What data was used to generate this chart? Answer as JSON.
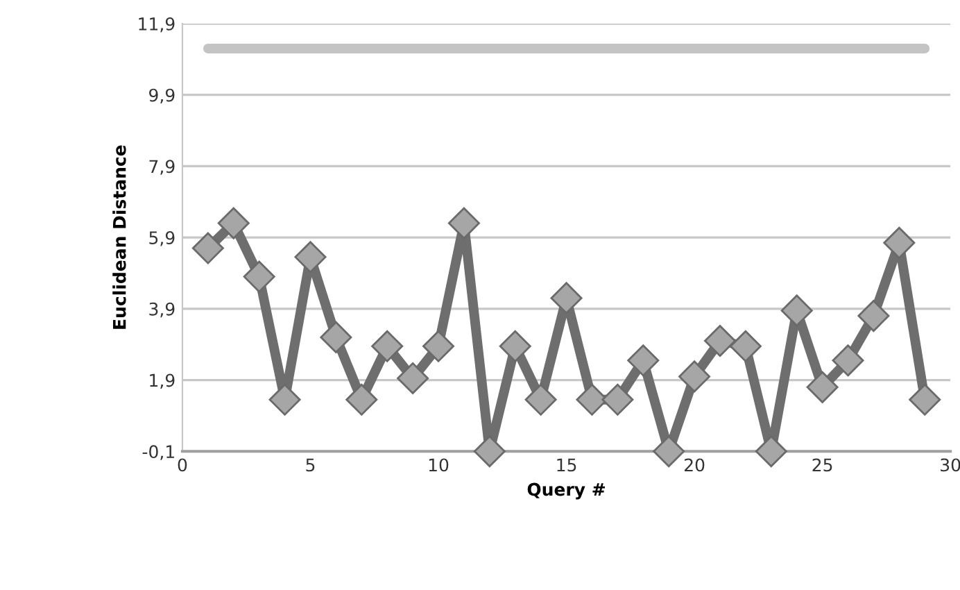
{
  "chart_data": {
    "type": "line",
    "xlabel": "Query #",
    "ylabel": "Euclidean Distance",
    "x": [
      1,
      2,
      3,
      4,
      5,
      6,
      7,
      8,
      9,
      10,
      11,
      12,
      13,
      14,
      15,
      16,
      17,
      18,
      19,
      20,
      21,
      22,
      23,
      24,
      25,
      26,
      27,
      28,
      29
    ],
    "series": [
      {
        "color": "#6e6e6e",
        "marker": "diamond",
        "values": [
          5.6,
          6.3,
          4.8,
          1.35,
          5.35,
          3.1,
          1.35,
          2.85,
          1.95,
          2.85,
          6.3,
          -0.1,
          2.85,
          1.35,
          4.2,
          1.35,
          1.35,
          2.45,
          -0.1,
          2.0,
          3.0,
          2.85,
          -0.1,
          3.85,
          1.7,
          2.45,
          3.7,
          5.75,
          1.35
        ]
      },
      {
        "color": "#c4c4c4",
        "marker": "none",
        "values": [
          11.2,
          11.2,
          11.2,
          11.2,
          11.2,
          11.2,
          11.2,
          11.2,
          11.2,
          11.2,
          11.2,
          11.2,
          11.2,
          11.2,
          11.2,
          11.2,
          11.2,
          11.2,
          11.2,
          11.2,
          11.2,
          11.2,
          11.2,
          11.2,
          11.2,
          11.2,
          11.2,
          11.2,
          11.2
        ]
      }
    ],
    "xlim": [
      0,
      30
    ],
    "xticks": [
      0,
      5,
      10,
      15,
      20,
      25,
      30
    ],
    "ylim": [
      -0.1,
      11.9
    ],
    "yticks": [
      {
        "value": -0.1,
        "label": "-0,1"
      },
      {
        "value": 1.9,
        "label": "1,9"
      },
      {
        "value": 3.9,
        "label": "3,9"
      },
      {
        "value": 5.9,
        "label": "5,9"
      },
      {
        "value": 7.9,
        "label": "7,9"
      },
      {
        "value": 9.9,
        "label": "9,9"
      },
      {
        "value": 11.9,
        "label": "11,9"
      }
    ],
    "grid": "y",
    "line_style": "solid"
  }
}
